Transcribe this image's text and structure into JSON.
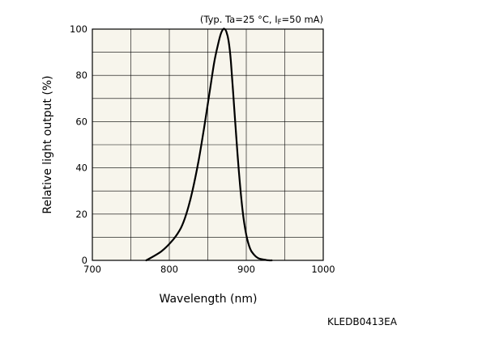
{
  "chart_data": {
    "type": "line",
    "xlabel": "Wavelength (nm)",
    "ylabel": "Relative light output (%)",
    "xlim": [
      700,
      1000
    ],
    "ylim": [
      0,
      100
    ],
    "xticks": [
      700,
      800,
      900,
      1000
    ],
    "yticks": [
      0,
      20,
      40,
      60,
      80,
      100
    ],
    "x_gridlines": [
      700,
      750,
      800,
      850,
      900,
      950,
      1000
    ],
    "y_gridlines": [
      0,
      10,
      20,
      30,
      40,
      50,
      60,
      70,
      80,
      90,
      100
    ],
    "grid": true,
    "plot_background": "#f7f5ec",
    "line_color": "#000000",
    "conditions": {
      "prefix": "(Typ. Ta=25 °C, I",
      "subscript": "F",
      "suffix": "=50 mA)"
    },
    "series": [
      {
        "x": [
          770,
          790,
          805,
          815,
          822,
          830,
          838,
          845,
          852,
          858,
          863,
          867,
          870,
          872,
          874,
          877,
          880,
          883,
          886,
          890,
          895,
          900,
          905,
          910,
          915,
          920,
          925,
          930,
          933
        ],
        "values": [
          0,
          4,
          9,
          14,
          20,
          30,
          43,
          57,
          72,
          85,
          93,
          98,
          100,
          100,
          99,
          95,
          86,
          72,
          58,
          40,
          22,
          11,
          5,
          2.5,
          1,
          0.5,
          0.2,
          0,
          0
        ]
      }
    ]
  },
  "document_code": "KLEDB0413EA"
}
